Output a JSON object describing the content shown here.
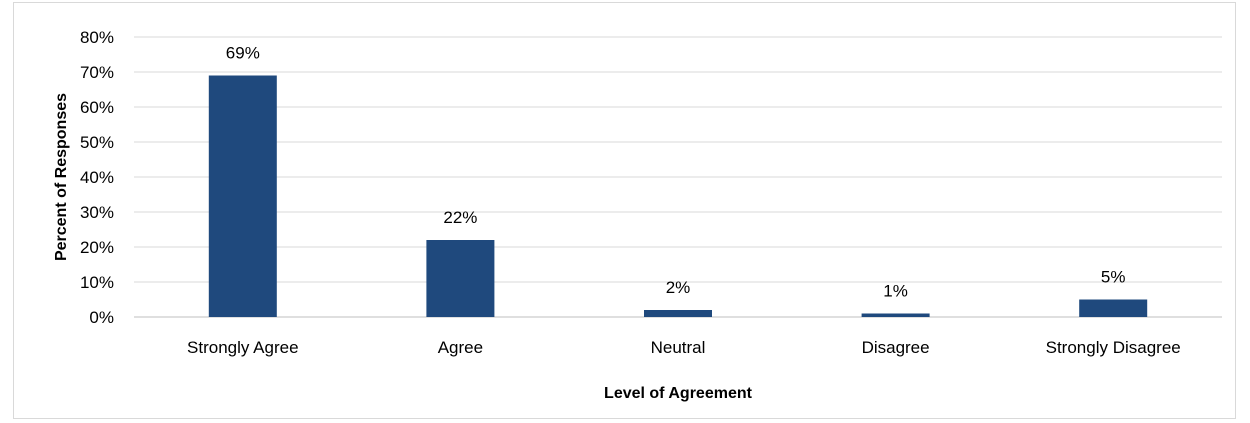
{
  "chart_data": {
    "type": "bar",
    "categories": [
      "Strongly Agree",
      "Agree",
      "Neutral",
      "Disagree",
      "Strongly Disagree"
    ],
    "values": [
      69,
      22,
      2,
      1,
      5
    ],
    "data_labels": [
      "69%",
      "22%",
      "2%",
      "1%",
      "5%"
    ],
    "title": "",
    "xlabel": "Level of Agreement",
    "ylabel": "Percent of Responses",
    "ylim": [
      0,
      80
    ],
    "yticks": [
      "0%",
      "10%",
      "20%",
      "30%",
      "40%",
      "50%",
      "60%",
      "70%",
      "80%"
    ],
    "grid": true,
    "legend": "none",
    "bar_color": "#1f497d"
  }
}
